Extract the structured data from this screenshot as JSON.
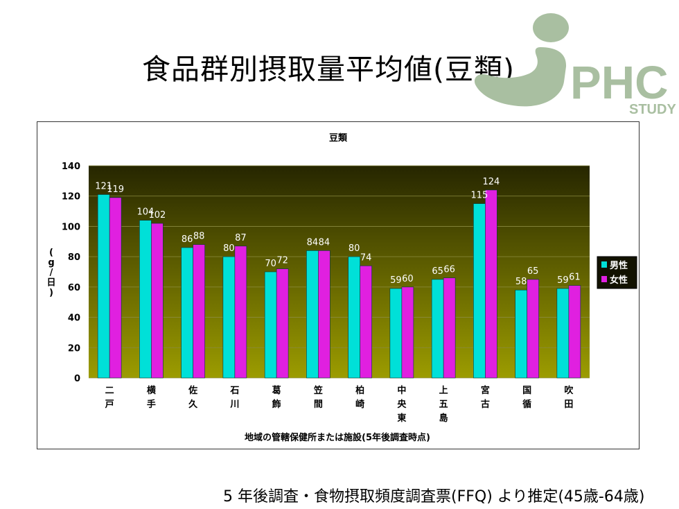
{
  "slide": {
    "title": "食品群別摂取量平均値(豆類)",
    "logo_text": "PHC",
    "logo_subtext": "STUDY",
    "footer_note": "5 年後調査・食物摂取頻度調査票(FFQ) より推定(45歳-64歳)"
  },
  "colors": {
    "male": "#00e0d8",
    "female": "#e020e0",
    "plot_top": "#262600",
    "plot_bottom": "#9c9c00",
    "logo": "#a9bfa1"
  },
  "chart_data": {
    "type": "bar",
    "title": "豆類",
    "xlabel": "地域の管轄保健所または施設(5年後調査時点)",
    "ylabel": "(g/日)",
    "ylim": [
      0,
      140
    ],
    "yticks": [
      "0",
      "20",
      "40",
      "60",
      "80",
      "100",
      "120",
      "140"
    ],
    "grid": true,
    "legend_position": "right",
    "categories": [
      [
        "二",
        "戸"
      ],
      [
        "横",
        "手"
      ],
      [
        "佐",
        "久"
      ],
      [
        "石",
        "川"
      ],
      [
        "葛",
        "飾"
      ],
      [
        "笠",
        "間"
      ],
      [
        "柏",
        "崎"
      ],
      [
        "中",
        "央",
        "東"
      ],
      [
        "上",
        "五",
        "島"
      ],
      [
        "宮",
        "古"
      ],
      [
        "国",
        "循"
      ],
      [
        "吹",
        "田"
      ]
    ],
    "series": [
      {
        "name": "男性",
        "values": [
          121,
          104,
          86,
          80,
          70,
          84,
          80,
          59,
          65,
          115,
          58,
          59
        ]
      },
      {
        "name": "女性",
        "values": [
          119,
          102,
          88,
          87,
          72,
          84,
          74,
          60,
          66,
          124,
          65,
          61
        ]
      }
    ]
  }
}
